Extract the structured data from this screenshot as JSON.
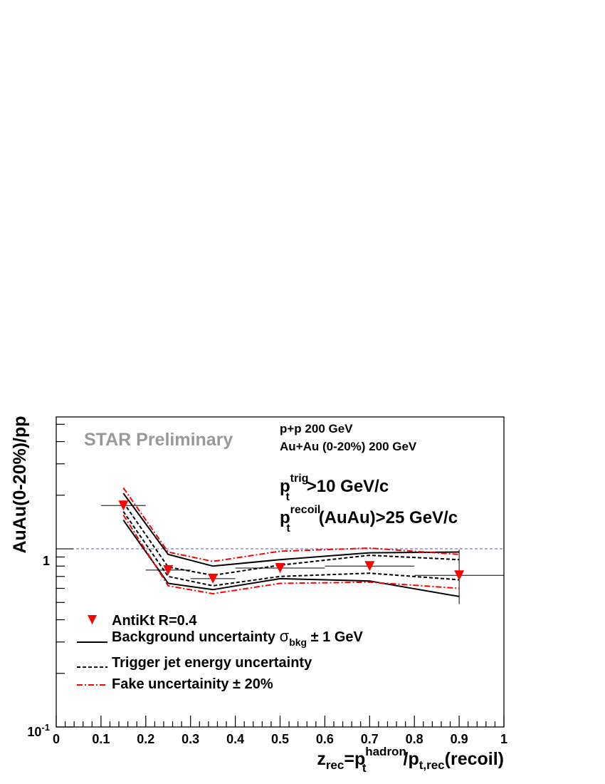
{
  "chart_data": {
    "type": "scatter",
    "xlim": [
      0,
      1
    ],
    "ylim": [
      0.1,
      5.5
    ],
    "yscale": "log",
    "x_ticks": [
      "0",
      "0.1",
      "0.2",
      "0.3",
      "0.4",
      "0.5",
      "0.6",
      "0.7",
      "0.8",
      "0.9",
      "1"
    ],
    "y_ticks": [
      {
        "value": 1,
        "label": "1"
      },
      {
        "value": 0.1,
        "base": "10",
        "exp": "-1"
      }
    ],
    "xlabel": {
      "z": "z",
      "z_sub": "rec",
      "eq_p": "=p",
      "p_sub": "t",
      "p_sup": "hadron",
      "slash_p": "/p",
      "p2_sub": "t,rec",
      "tail": "(recoil)"
    },
    "ylabel": "AuAu(0-20%)/pp",
    "watermark": "STAR Preliminary",
    "info": [
      "p+p 200 GeV",
      "Au+Au (0-20%) 200 GeV"
    ],
    "cut1": {
      "p": "p",
      "sub": "t",
      "sup": "trig",
      "tail": ">10 GeV/c"
    },
    "cut2": {
      "p": "p",
      "sub": "t",
      "sup": "recoil",
      "tail": "(AuAu)>25 GeV/c"
    },
    "reference_line": 1,
    "points": [
      {
        "x": 0.15,
        "y": 1.75,
        "xerr": 0.05,
        "ylo": null,
        "yhi": null
      },
      {
        "x": 0.25,
        "y": 0.76,
        "xerr": 0.05,
        "ylo": null,
        "yhi": null
      },
      {
        "x": 0.35,
        "y": 0.68,
        "xerr": 0.05,
        "ylo": null,
        "yhi": null
      },
      {
        "x": 0.5,
        "y": 0.78,
        "xerr": 0.1,
        "ylo": null,
        "yhi": null
      },
      {
        "x": 0.7,
        "y": 0.8,
        "xerr": 0.1,
        "ylo": null,
        "yhi": null
      },
      {
        "x": 0.9,
        "y": 0.71,
        "xerr": 0.1,
        "ylo": 0.49,
        "yhi": 0.99
      }
    ],
    "bands": [
      {
        "name": "bkg",
        "style": "solid",
        "color": "#000000",
        "upper": [
          [
            0.15,
            2.05
          ],
          [
            0.25,
            0.93
          ],
          [
            0.35,
            0.8
          ],
          [
            0.5,
            0.87
          ],
          [
            0.7,
            0.95
          ],
          [
            0.9,
            0.96
          ]
        ],
        "lower": [
          [
            0.15,
            1.45
          ],
          [
            0.25,
            0.64
          ],
          [
            0.35,
            0.59
          ],
          [
            0.5,
            0.68
          ],
          [
            0.7,
            0.66
          ],
          [
            0.9,
            0.54
          ]
        ]
      },
      {
        "name": "trig",
        "style": "dash",
        "color": "#000000",
        "upper": [
          [
            0.15,
            1.82
          ],
          [
            0.25,
            0.79
          ],
          [
            0.35,
            0.71
          ],
          [
            0.5,
            0.81
          ],
          [
            0.7,
            0.92
          ],
          [
            0.9,
            0.87
          ]
        ],
        "lower": [
          [
            0.15,
            1.62
          ],
          [
            0.25,
            0.7
          ],
          [
            0.35,
            0.62
          ],
          [
            0.5,
            0.7
          ],
          [
            0.7,
            0.73
          ],
          [
            0.9,
            0.67
          ]
        ]
      },
      {
        "name": "fake",
        "style": "dashdot",
        "color": "#ff0000",
        "upper": [
          [
            0.15,
            2.2
          ],
          [
            0.25,
            0.96
          ],
          [
            0.35,
            0.85
          ],
          [
            0.5,
            0.97
          ],
          [
            0.7,
            1.01
          ],
          [
            0.9,
            0.93
          ]
        ],
        "lower": [
          [
            0.15,
            1.55
          ],
          [
            0.25,
            0.62
          ],
          [
            0.35,
            0.56
          ],
          [
            0.5,
            0.64
          ],
          [
            0.7,
            0.65
          ],
          [
            0.9,
            0.6
          ]
        ]
      }
    ],
    "legend": {
      "placement": "bottom-left",
      "entries": [
        {
          "key": "marker",
          "label": "AntiKt R=0.4"
        },
        {
          "key": "bkg",
          "label": "Background uncertainty ",
          "sym": "σ",
          "sym_sub": "bkg",
          "after": " ± 1 GeV"
        },
        {
          "key": "trig",
          "label": "Trigger jet energy uncertainty"
        },
        {
          "key": "fake",
          "label": "Fake uncertainity ± 20%"
        }
      ]
    },
    "colors": {
      "marker": "#ff0000",
      "refline": "#5a5a9a",
      "watermark": "#999999"
    }
  }
}
